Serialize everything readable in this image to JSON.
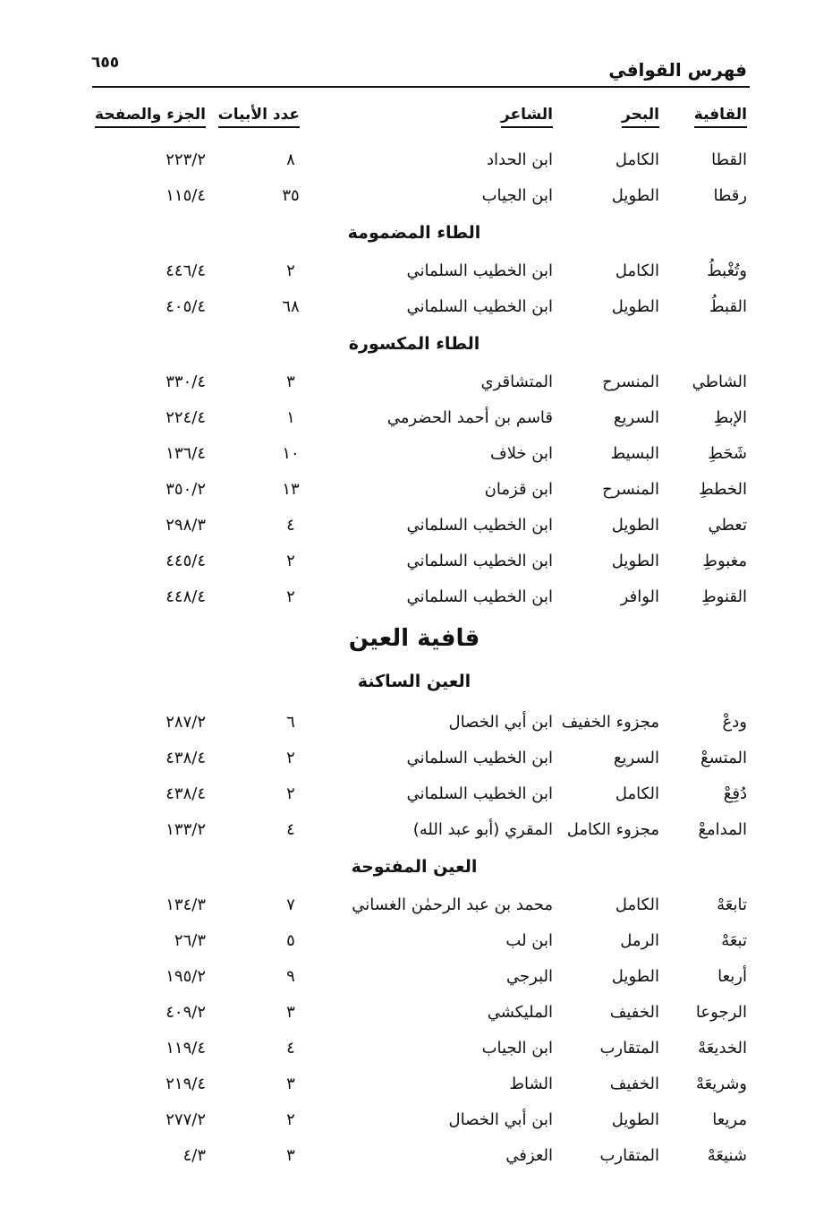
{
  "header": {
    "title": "فهرس القوافي",
    "page_number": "٦٥٥"
  },
  "columns": {
    "rhyme": "القافية",
    "meter": "البحر",
    "poet": "الشاعر",
    "count": "عدد الأبيات",
    "ref": "الجزء والصفحة"
  },
  "sections": [
    {
      "heading": "",
      "level": "none",
      "rows": [
        {
          "rhyme": "القطا",
          "meter": "الكامل",
          "poet": "ابن الحداد",
          "count": "٨",
          "ref": "٢٢٣/٢"
        },
        {
          "rhyme": "رقطا",
          "meter": "الطويل",
          "poet": "ابن الجياب",
          "count": "٣٥",
          "ref": "١١٥/٤"
        }
      ]
    },
    {
      "heading": "الطاء المضمومة",
      "level": "sub",
      "rows": [
        {
          "rhyme": "وتُغْبطُ",
          "meter": "الكامل",
          "poet": "ابن الخطيب السلماني",
          "count": "٢",
          "ref": "٤٤٦/٤"
        },
        {
          "rhyme": "القبطُ",
          "meter": "الطويل",
          "poet": "ابن الخطيب السلماني",
          "count": "٦٨",
          "ref": "٤٠٥/٤"
        }
      ]
    },
    {
      "heading": "الطاء المكسورة",
      "level": "sub",
      "rows": [
        {
          "rhyme": "الشاطي",
          "meter": "المنسرح",
          "poet": "المتشاقري",
          "count": "٣",
          "ref": "٣٣٠/٤"
        },
        {
          "rhyme": "الإبطِ",
          "meter": "السريع",
          "poet": "قاسم بن أحمد الحضرمي",
          "count": "١",
          "ref": "٢٢٤/٤"
        },
        {
          "rhyme": "شَحَطِ",
          "meter": "البسيط",
          "poet": "ابن خلاف",
          "count": "١٠",
          "ref": "١٣٦/٤"
        },
        {
          "rhyme": "الخططِ",
          "meter": "المنسرح",
          "poet": "ابن قزمان",
          "count": "١٣",
          "ref": "٣٥٠/٢"
        },
        {
          "rhyme": "تعطي",
          "meter": "الطويل",
          "poet": "ابن الخطيب السلماني",
          "count": "٤",
          "ref": "٢٩٨/٣"
        },
        {
          "rhyme": "مغبوطِ",
          "meter": "الطويل",
          "poet": "ابن الخطيب السلماني",
          "count": "٢",
          "ref": "٤٤٥/٤"
        },
        {
          "rhyme": "القنوطِ",
          "meter": "الوافر",
          "poet": "ابن الخطيب السلماني",
          "count": "٢",
          "ref": "٤٤٨/٤"
        }
      ]
    },
    {
      "heading": "قافية العين",
      "level": "main",
      "rows": []
    },
    {
      "heading": "العين الساكنة",
      "level": "after-main",
      "rows": [
        {
          "rhyme": "ودعْ",
          "meter": "مجزوء الخفيف",
          "poet": "ابن أبي الخصال",
          "count": "٦",
          "ref": "٢٨٧/٢"
        },
        {
          "rhyme": "المتسعْ",
          "meter": "السريع",
          "poet": "ابن الخطيب السلماني",
          "count": "٢",
          "ref": "٤٣٨/٤"
        },
        {
          "rhyme": "دُفِعْ",
          "meter": "الكامل",
          "poet": "ابن الخطيب السلماني",
          "count": "٢",
          "ref": "٤٣٨/٤"
        },
        {
          "rhyme": "المدامعْ",
          "meter": "مجزوء الكامل",
          "poet": "المقري (أبو عبد الله)",
          "count": "٤",
          "ref": "١٣٣/٢"
        }
      ]
    },
    {
      "heading": "العين المفتوحة",
      "level": "sub",
      "rows": [
        {
          "rhyme": "تابعَهْ",
          "meter": "الكامل",
          "poet": "محمد بن عبد الرحمٰن الغساني",
          "count": "٧",
          "ref": "١٣٤/٣"
        },
        {
          "rhyme": "تبعَهْ",
          "meter": "الرمل",
          "poet": "ابن لب",
          "count": "٥",
          "ref": "٢٦/٣"
        },
        {
          "rhyme": "أربعا",
          "meter": "الطويل",
          "poet": "البرجي",
          "count": "٩",
          "ref": "١٩٥/٢"
        },
        {
          "rhyme": "الرجوعا",
          "meter": "الخفيف",
          "poet": "المليكشي",
          "count": "٣",
          "ref": "٤٠٩/٢"
        },
        {
          "rhyme": "الخديعَهْ",
          "meter": "المتقارب",
          "poet": "ابن الجياب",
          "count": "٤",
          "ref": "١١٩/٤"
        },
        {
          "rhyme": "وشريعَهْ",
          "meter": "الخفيف",
          "poet": "الشاط",
          "count": "٣",
          "ref": "٢١٩/٤"
        },
        {
          "rhyme": "مريعا",
          "meter": "الطويل",
          "poet": "ابن أبي الخصال",
          "count": "٢",
          "ref": "٢٧٧/٢"
        },
        {
          "rhyme": "شنيعَهْ",
          "meter": "المتقارب",
          "poet": "العزفي",
          "count": "٣",
          "ref": "٤/٣"
        }
      ]
    }
  ]
}
